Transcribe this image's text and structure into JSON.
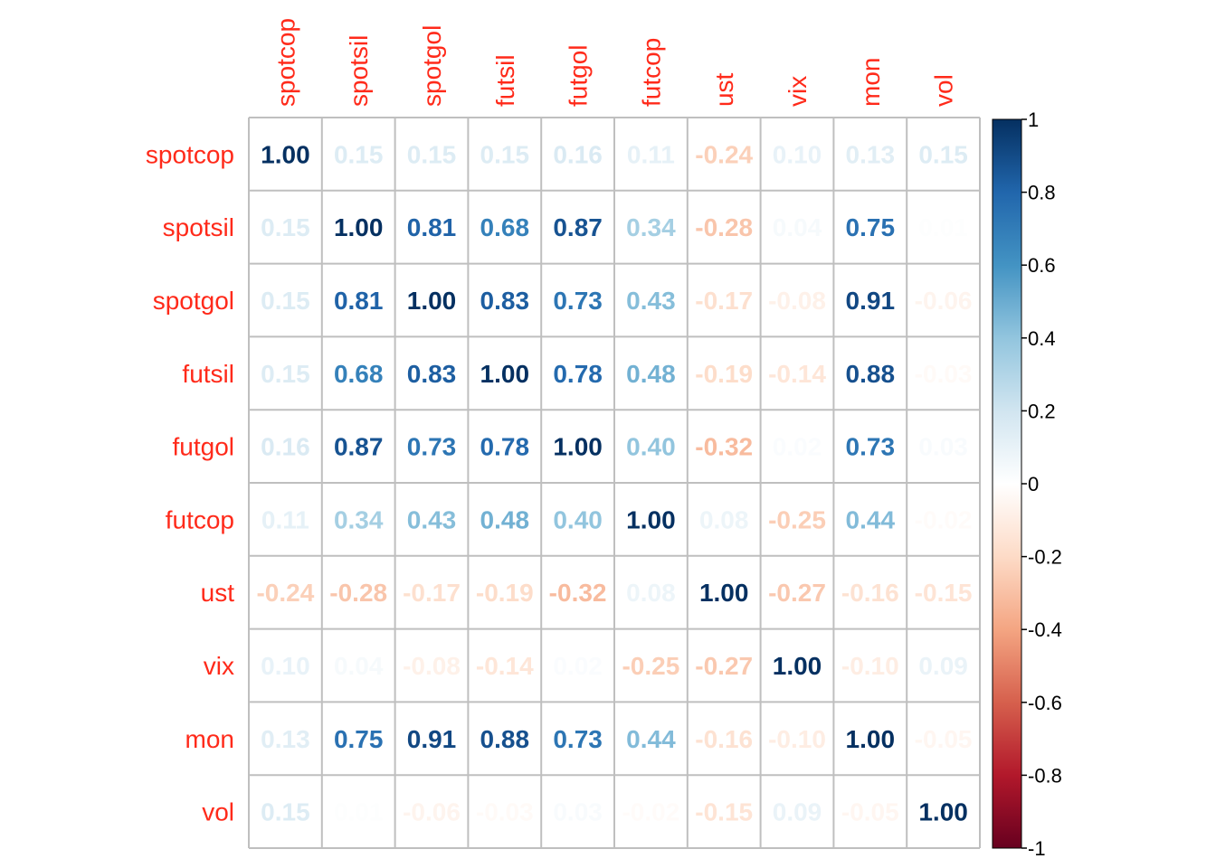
{
  "chart_data": {
    "type": "heatmap",
    "variables": [
      "spotcop",
      "spotsil",
      "spotgol",
      "futsil",
      "futgol",
      "futcop",
      "ust",
      "vix",
      "mon",
      "vol"
    ],
    "matrix": [
      [
        1.0,
        0.15,
        0.15,
        0.15,
        0.16,
        0.11,
        -0.24,
        0.1,
        0.13,
        0.15
      ],
      [
        0.15,
        1.0,
        0.81,
        0.68,
        0.87,
        0.34,
        -0.28,
        0.04,
        0.75,
        0.01
      ],
      [
        0.15,
        0.81,
        1.0,
        0.83,
        0.73,
        0.43,
        -0.17,
        -0.08,
        0.91,
        -0.06
      ],
      [
        0.15,
        0.68,
        0.83,
        1.0,
        0.78,
        0.48,
        -0.19,
        -0.14,
        0.88,
        -0.03
      ],
      [
        0.16,
        0.87,
        0.73,
        0.78,
        1.0,
        0.4,
        -0.32,
        0.02,
        0.73,
        0.03
      ],
      [
        0.11,
        0.34,
        0.43,
        0.48,
        0.4,
        1.0,
        0.08,
        -0.25,
        0.44,
        -0.02
      ],
      [
        -0.24,
        -0.28,
        -0.17,
        -0.19,
        -0.32,
        0.08,
        1.0,
        -0.27,
        -0.16,
        -0.15
      ],
      [
        0.1,
        0.04,
        -0.08,
        -0.14,
        0.02,
        -0.25,
        -0.27,
        1.0,
        -0.1,
        0.09
      ],
      [
        0.13,
        0.75,
        0.91,
        0.88,
        0.73,
        0.44,
        -0.16,
        -0.1,
        1.0,
        -0.05
      ],
      [
        0.15,
        0.01,
        -0.06,
        -0.03,
        0.03,
        -0.02,
        -0.15,
        0.09,
        -0.05,
        1.0
      ]
    ],
    "number_format": "2 decimals",
    "colorbar": {
      "range": [
        -1,
        1
      ],
      "ticks": [
        "1",
        "0.8",
        "0.6",
        "0.4",
        "0.2",
        "0",
        "-0.2",
        "-0.4",
        "-0.6",
        "-0.8",
        "-1"
      ],
      "placement": "right"
    },
    "label_color": "#FF2A1A",
    "palette": [
      "#67001F",
      "#B2182B",
      "#D6604D",
      "#F4A582",
      "#FDDBC7",
      "#FFFFFF",
      "#D1E5F0",
      "#92C5DE",
      "#4393C3",
      "#2166AC",
      "#053061"
    ],
    "grid": true
  }
}
